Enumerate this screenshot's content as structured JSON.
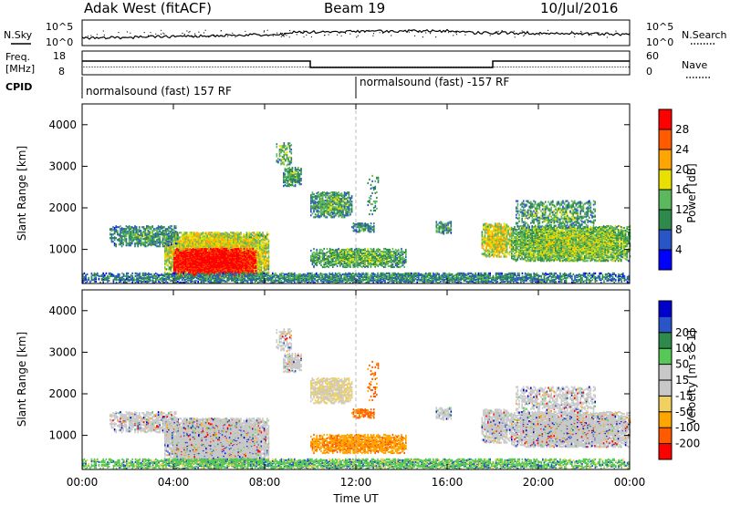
{
  "header": {
    "title": "Adak West (fitACF)",
    "beam": "Beam 19",
    "date": "10/Jul/2016"
  },
  "noise_panel": {
    "left_label": "N.Sky",
    "right_label": "N.Search",
    "left_ticks": [
      "10^5",
      "10^0"
    ],
    "right_ticks": [
      "10^5",
      "10^0"
    ]
  },
  "freq_panel": {
    "left_label_1": "Freq.",
    "left_label_2": "[MHz]",
    "left_ticks": [
      "18",
      "8"
    ],
    "right_label": "Nave",
    "right_ticks": [
      "60",
      "0"
    ]
  },
  "cpid": {
    "label": "CPID",
    "segments": [
      "normalsound (fast) 157 RF",
      "normalsound (fast) -157 RF"
    ]
  },
  "colors": {
    "power": [
      "#0000ff",
      "#2a55c8",
      "#2e8a4a",
      "#5cb85c",
      "#e8e000",
      "#ffa500",
      "#ff5a00",
      "#ff0000"
    ],
    "velocity": [
      "#ff0000",
      "#ff5a00",
      "#ffa500",
      "#f0d060",
      "#c8c8c8",
      "#c8c8c8",
      "#55c855",
      "#2e8a4a",
      "#2a55c8",
      "#0000cc"
    ]
  },
  "chart_data": [
    {
      "type": "heatmap",
      "title": "Power",
      "ylabel": "Slant Range [km]",
      "xlabel": "Time UT",
      "ylim": [
        180,
        4500
      ],
      "yticks": [
        1000,
        2000,
        3000,
        4000
      ],
      "colorbar_label": "Power [dB]",
      "colorbar_ticks": [
        "4",
        "8",
        "12",
        "16",
        "20",
        "24",
        "28"
      ],
      "colorbar_range": [
        0,
        30
      ]
    },
    {
      "type": "heatmap",
      "title": "Velocity",
      "ylabel": "Slant Range [km]",
      "xlabel": "Time UT",
      "ylim": [
        180,
        4500
      ],
      "yticks": [
        1000,
        2000,
        3000,
        4000
      ],
      "colorbar_label": "Velocity [m s^-1]",
      "colorbar_ticks": [
        "-200",
        "-100",
        "-50",
        "-15",
        "15",
        "50",
        "100",
        "200"
      ]
    }
  ],
  "x_axis": {
    "ticks": [
      "00:00",
      "04:00",
      "08:00",
      "12:00",
      "16:00",
      "20:00",
      "00:00"
    ],
    "label": "Time UT"
  }
}
